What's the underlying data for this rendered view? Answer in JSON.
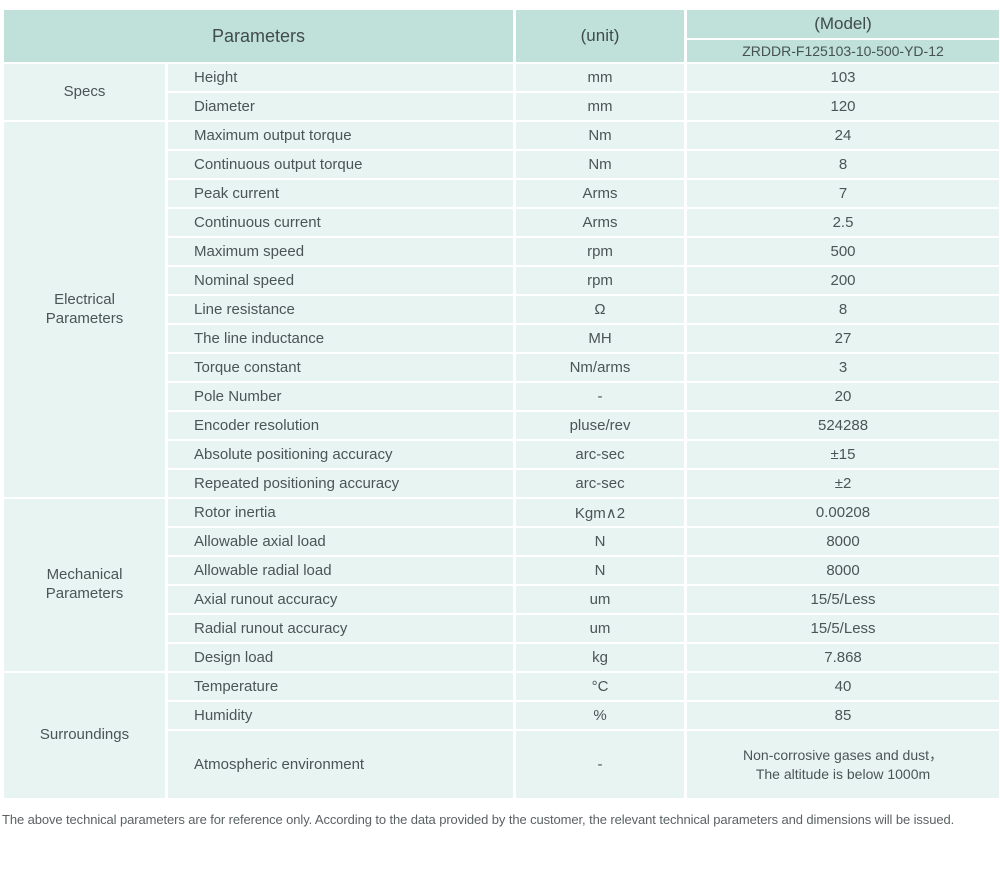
{
  "header": {
    "parameters_label": "Parameters",
    "unit_label": "(unit)",
    "model_label": "(Model)",
    "model_value": "ZRDDR-F125103-10-500-YD-12"
  },
  "sections": [
    {
      "name": "Specs",
      "rows": [
        {
          "param": "Height",
          "unit": "mm",
          "value": "103"
        },
        {
          "param": "Diameter",
          "unit": "mm",
          "value": "120"
        }
      ]
    },
    {
      "name": "Electrical Parameters",
      "rows": [
        {
          "param": "Maximum output torque",
          "unit": "Nm",
          "value": "24"
        },
        {
          "param": "Continuous output torque",
          "unit": "Nm",
          "value": "8"
        },
        {
          "param": "Peak current",
          "unit": "Arms",
          "value": "7"
        },
        {
          "param": "Continuous current",
          "unit": "Arms",
          "value": "2.5"
        },
        {
          "param": "Maximum speed",
          "unit": "rpm",
          "value": "500"
        },
        {
          "param": "Nominal speed",
          "unit": "rpm",
          "value": "200"
        },
        {
          "param": "Line resistance",
          "unit": "Ω",
          "value": "8"
        },
        {
          "param": "The line inductance",
          "unit": "MH",
          "value": "27"
        },
        {
          "param": "Torque constant",
          "unit": "Nm/arms",
          "value": "3"
        },
        {
          "param": "Pole Number",
          "unit": "-",
          "value": "20"
        },
        {
          "param": "Encoder resolution",
          "unit": "pluse/rev",
          "value": "524288"
        },
        {
          "param": "Absolute positioning accuracy",
          "unit": "arc-sec",
          "value": "±15"
        },
        {
          "param": "Repeated positioning accuracy",
          "unit": "arc-sec",
          "value": "±2"
        }
      ]
    },
    {
      "name": "Mechanical Parameters",
      "rows": [
        {
          "param": "Rotor inertia",
          "unit": "Kgm∧2",
          "value": "0.00208"
        },
        {
          "param": "Allowable axial load",
          "unit": "N",
          "value": "8000"
        },
        {
          "param": "Allowable radial load",
          "unit": "N",
          "value": "8000"
        },
        {
          "param": "Axial runout accuracy",
          "unit": "um",
          "value": "15/5/Less"
        },
        {
          "param": "Radial runout accuracy",
          "unit": "um",
          "value": "15/5/Less"
        },
        {
          "param": "Design load",
          "unit": "kg",
          "value": "7.868"
        }
      ]
    },
    {
      "name": "Surroundings",
      "rows": [
        {
          "param": "Temperature",
          "unit": "°C",
          "value": "40"
        },
        {
          "param": "Humidity",
          "unit": "%",
          "value": "85"
        },
        {
          "param": "Atmospheric environment",
          "unit": "-",
          "value": "Non-corrosive gases and dust，\nThe altitude is below 1000m"
        }
      ]
    }
  ],
  "footer": {
    "note": "The above technical parameters are for reference only. According to the data provided by the customer, the relevant technical parameters and dimensions will be issued."
  },
  "colors": {
    "header_bg": "#bfe1da",
    "row_bg": "#e8f4f1",
    "text": "#4b5456"
  }
}
